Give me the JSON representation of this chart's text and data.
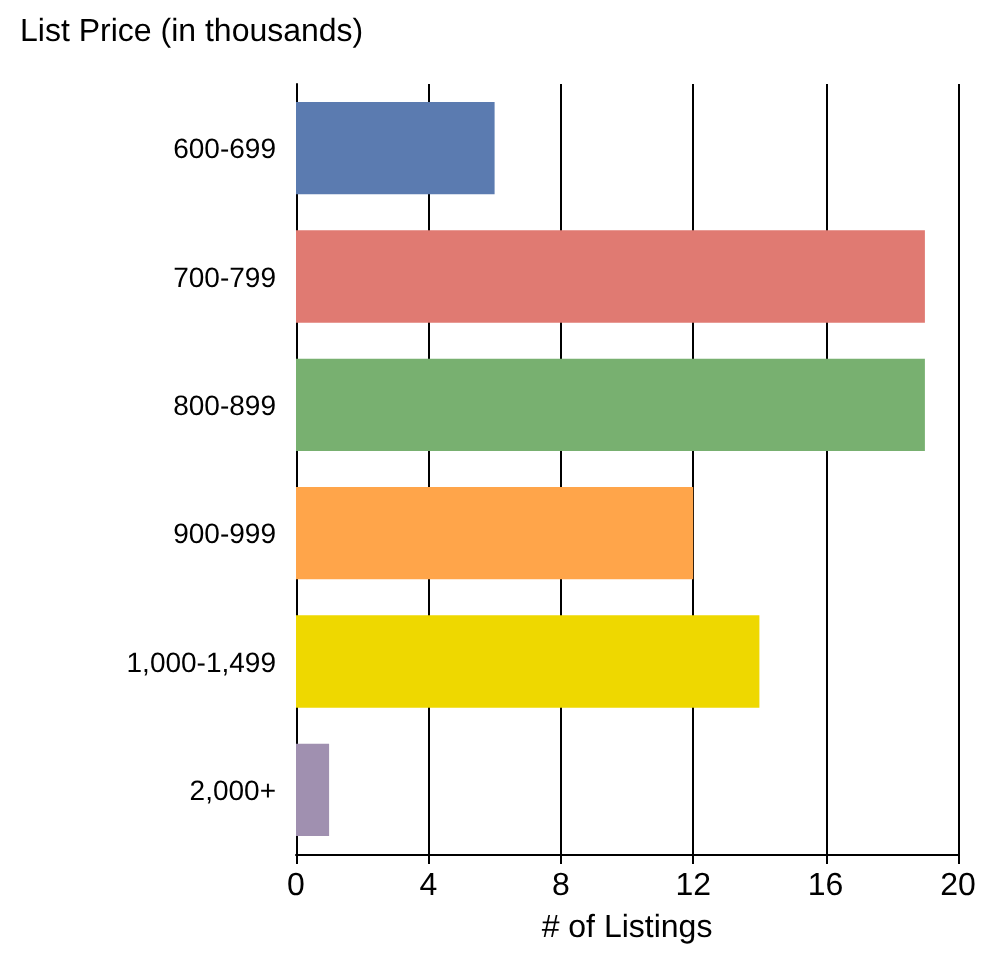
{
  "chart_data": {
    "type": "bar",
    "orientation": "horizontal",
    "ylabel": "List Price (in thousands)",
    "xlabel": "# of Listings",
    "categories": [
      "600-699",
      "700-799",
      "800-899",
      "900-999",
      "1,000-1,499",
      "2,000+"
    ],
    "values": [
      6,
      19,
      19,
      12,
      14,
      1
    ],
    "colors": [
      "#5b7bb0",
      "#e07a72",
      "#78b070",
      "#ffa54a",
      "#eed800",
      "#a090b0"
    ],
    "xlim": [
      0,
      20
    ],
    "xticks": [
      0,
      4,
      8,
      12,
      16,
      20
    ],
    "grid": "x"
  }
}
